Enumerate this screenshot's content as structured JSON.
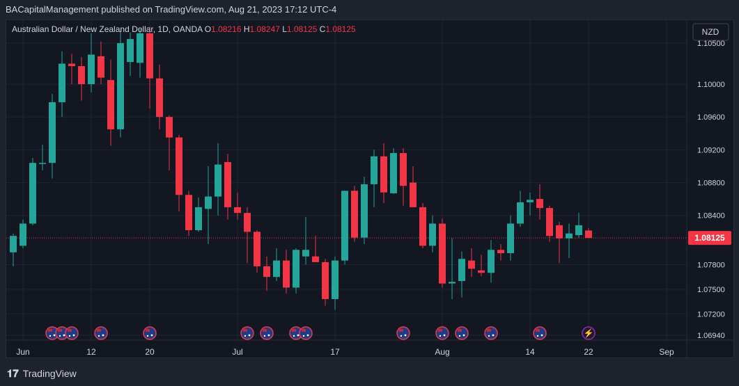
{
  "header": {
    "publisher": "BACapitalManagement published on TradingView.com, Aug 21, 2023 17:12 UTC-4"
  },
  "footer": {
    "brand": "TradingView",
    "logo": "tv-logo-icon"
  },
  "colors": {
    "up": "#26a69a",
    "down": "#f23645",
    "grid": "#1f2430",
    "text": "#d1d4dc",
    "bg": "#131722"
  },
  "chart_data": {
    "type": "candlestick",
    "symbol": "Australian Dollar / New Zealand Dollar, 1D, OANDA",
    "ohlc_labels": {
      "o": "O",
      "h": "H",
      "l": "L",
      "c": "C"
    },
    "ohlc_values": {
      "o": "1.08216",
      "h": "1.08247",
      "l": "1.08125",
      "c": "1.08125"
    },
    "currency": "NZD",
    "last_price": 1.08125,
    "last_price_label": "1.08125",
    "ylim": [
      1.0688,
      1.1078
    ],
    "y_ticks": [
      1.105,
      1.1,
      1.096,
      1.092,
      1.088,
      1.084,
      1.078,
      1.075,
      1.072,
      1.0694
    ],
    "y_tick_labels": [
      "1.10500",
      "1.10000",
      "1.09600",
      "1.09200",
      "1.08800",
      "1.08400",
      "1.07800",
      "1.07500",
      "1.07200",
      "1.06940"
    ],
    "x_ticks": [
      {
        "i": 1,
        "label": "Jun"
      },
      {
        "i": 8,
        "label": "12"
      },
      {
        "i": 14,
        "label": "20"
      },
      {
        "i": 23,
        "label": "Jul"
      },
      {
        "i": 33,
        "label": "17"
      },
      {
        "i": 44,
        "label": "Aug"
      },
      {
        "i": 53,
        "label": "14"
      },
      {
        "i": 59,
        "label": "22"
      },
      {
        "i": 67,
        "label": "Sep"
      }
    ],
    "candles": [
      {
        "o": 1.0795,
        "h": 1.0818,
        "l": 1.0778,
        "c": 1.0815
      },
      {
        "o": 1.0803,
        "h": 1.0835,
        "l": 1.08,
        "c": 1.083
      },
      {
        "o": 1.083,
        "h": 1.091,
        "l": 1.0828,
        "c": 1.0904
      },
      {
        "o": 1.0904,
        "h": 1.0926,
        "l": 1.0895,
        "c": 1.0904
      },
      {
        "o": 1.0904,
        "h": 1.0988,
        "l": 1.0885,
        "c": 1.0978
      },
      {
        "o": 1.0978,
        "h": 1.104,
        "l": 1.096,
        "c": 1.1025
      },
      {
        "o": 1.1025,
        "h": 1.1037,
        "l": 1.1,
        "c": 1.1022
      },
      {
        "o": 1.1022,
        "h": 1.1033,
        "l": 1.098,
        "c": 1.1
      },
      {
        "o": 1.1,
        "h": 1.1062,
        "l": 1.099,
        "c": 1.1036
      },
      {
        "o": 1.1034,
        "h": 1.1052,
        "l": 1.1,
        "c": 1.1008
      },
      {
        "o": 1.1005,
        "h": 1.103,
        "l": 1.0925,
        "c": 1.0945
      },
      {
        "o": 1.0945,
        "h": 1.1065,
        "l": 1.0935,
        "c": 1.105
      },
      {
        "o": 1.1027,
        "h": 1.1063,
        "l": 1.101,
        "c": 1.1055
      },
      {
        "o": 1.1026,
        "h": 1.1068,
        "l": 1.1008,
        "c": 1.1062
      },
      {
        "o": 1.1062,
        "h": 1.107,
        "l": 1.097,
        "c": 1.1007
      },
      {
        "o": 1.1007,
        "h": 1.1024,
        "l": 1.0945,
        "c": 1.096
      },
      {
        "o": 1.096,
        "h": 1.0962,
        "l": 1.0895,
        "c": 1.0935
      },
      {
        "o": 1.0935,
        "h": 1.0938,
        "l": 1.0845,
        "c": 1.0865
      },
      {
        "o": 1.0865,
        "h": 1.087,
        "l": 1.0815,
        "c": 1.0822
      },
      {
        "o": 1.0822,
        "h": 1.0862,
        "l": 1.082,
        "c": 1.085
      },
      {
        "o": 1.0848,
        "h": 1.09,
        "l": 1.0805,
        "c": 1.0863
      },
      {
        "o": 1.0863,
        "h": 1.0928,
        "l": 1.084,
        "c": 1.0902
      },
      {
        "o": 1.0905,
        "h": 1.0915,
        "l": 1.0835,
        "c": 1.085
      },
      {
        "o": 1.085,
        "h": 1.0868,
        "l": 1.0835,
        "c": 1.0843
      },
      {
        "o": 1.0843,
        "h": 1.085,
        "l": 1.0782,
        "c": 1.082
      },
      {
        "o": 1.082,
        "h": 1.0822,
        "l": 1.077,
        "c": 1.0778
      },
      {
        "o": 1.0778,
        "h": 1.079,
        "l": 1.0748,
        "c": 1.0765
      },
      {
        "o": 1.0765,
        "h": 1.08,
        "l": 1.076,
        "c": 1.0785
      },
      {
        "o": 1.0785,
        "h": 1.0798,
        "l": 1.0745,
        "c": 1.0752
      },
      {
        "o": 1.0752,
        "h": 1.08,
        "l": 1.0745,
        "c": 1.0798
      },
      {
        "o": 1.079,
        "h": 1.0838,
        "l": 1.078,
        "c": 1.0798
      },
      {
        "o": 1.079,
        "h": 1.0815,
        "l": 1.0785,
        "c": 1.0783
      },
      {
        "o": 1.0783,
        "h": 1.0787,
        "l": 1.073,
        "c": 1.0738
      },
      {
        "o": 1.0738,
        "h": 1.079,
        "l": 1.0725,
        "c": 1.0785
      },
      {
        "o": 1.0785,
        "h": 1.087,
        "l": 1.078,
        "c": 1.087
      },
      {
        "o": 1.087,
        "h": 1.0876,
        "l": 1.0808,
        "c": 1.0813
      },
      {
        "o": 1.0813,
        "h": 1.0887,
        "l": 1.0805,
        "c": 1.0878
      },
      {
        "o": 1.0878,
        "h": 1.092,
        "l": 1.085,
        "c": 1.0912
      },
      {
        "o": 1.0912,
        "h": 1.0928,
        "l": 1.0855,
        "c": 1.0868
      },
      {
        "o": 1.0867,
        "h": 1.0922,
        "l": 1.0866,
        "c": 1.0916
      },
      {
        "o": 1.0916,
        "h": 1.0922,
        "l": 1.0852,
        "c": 1.0876
      },
      {
        "o": 1.088,
        "h": 1.09,
        "l": 1.085,
        "c": 1.085
      },
      {
        "o": 1.085,
        "h": 1.0855,
        "l": 1.08,
        "c": 1.0803
      },
      {
        "o": 1.0803,
        "h": 1.084,
        "l": 1.0795,
        "c": 1.083
      },
      {
        "o": 1.083,
        "h": 1.0836,
        "l": 1.0752,
        "c": 1.0757
      },
      {
        "o": 1.0757,
        "h": 1.0812,
        "l": 1.0738,
        "c": 1.0759
      },
      {
        "o": 1.076,
        "h": 1.0796,
        "l": 1.074,
        "c": 1.0787
      },
      {
        "o": 1.0785,
        "h": 1.08,
        "l": 1.0765,
        "c": 1.0775
      },
      {
        "o": 1.0773,
        "h": 1.0792,
        "l": 1.0766,
        "c": 1.077
      },
      {
        "o": 1.077,
        "h": 1.081,
        "l": 1.0758,
        "c": 1.0798
      },
      {
        "o": 1.0798,
        "h": 1.0805,
        "l": 1.0785,
        "c": 1.0794
      },
      {
        "o": 1.0794,
        "h": 1.084,
        "l": 1.0785,
        "c": 1.083
      },
      {
        "o": 1.083,
        "h": 1.087,
        "l": 1.0826,
        "c": 1.0856
      },
      {
        "o": 1.0856,
        "h": 1.0868,
        "l": 1.084,
        "c": 1.0859
      },
      {
        "o": 1.086,
        "h": 1.0878,
        "l": 1.0835,
        "c": 1.0849
      },
      {
        "o": 1.0849,
        "h": 1.0852,
        "l": 1.0808,
        "c": 1.0815
      },
      {
        "o": 1.0828,
        "h": 1.0832,
        "l": 1.0782,
        "c": 1.0812
      },
      {
        "o": 1.0812,
        "h": 1.083,
        "l": 1.0788,
        "c": 1.0818
      },
      {
        "o": 1.0816,
        "h": 1.0843,
        "l": 1.0813,
        "c": 1.0828
      },
      {
        "o": 1.08216,
        "h": 1.08247,
        "l": 1.08125,
        "c": 1.08125
      }
    ],
    "events": [
      {
        "i": 4,
        "type": "flag"
      },
      {
        "i": 5,
        "type": "flag"
      },
      {
        "i": 6,
        "type": "flag"
      },
      {
        "i": 9,
        "type": "flag"
      },
      {
        "i": 14,
        "type": "flag"
      },
      {
        "i": 24,
        "type": "flag"
      },
      {
        "i": 26,
        "type": "flag"
      },
      {
        "i": 29,
        "type": "flag"
      },
      {
        "i": 30,
        "type": "flag"
      },
      {
        "i": 40,
        "type": "flag"
      },
      {
        "i": 44,
        "type": "flag"
      },
      {
        "i": 46,
        "type": "flag"
      },
      {
        "i": 49,
        "type": "flag"
      },
      {
        "i": 54,
        "type": "flag"
      },
      {
        "i": 59,
        "type": "flash"
      }
    ]
  }
}
